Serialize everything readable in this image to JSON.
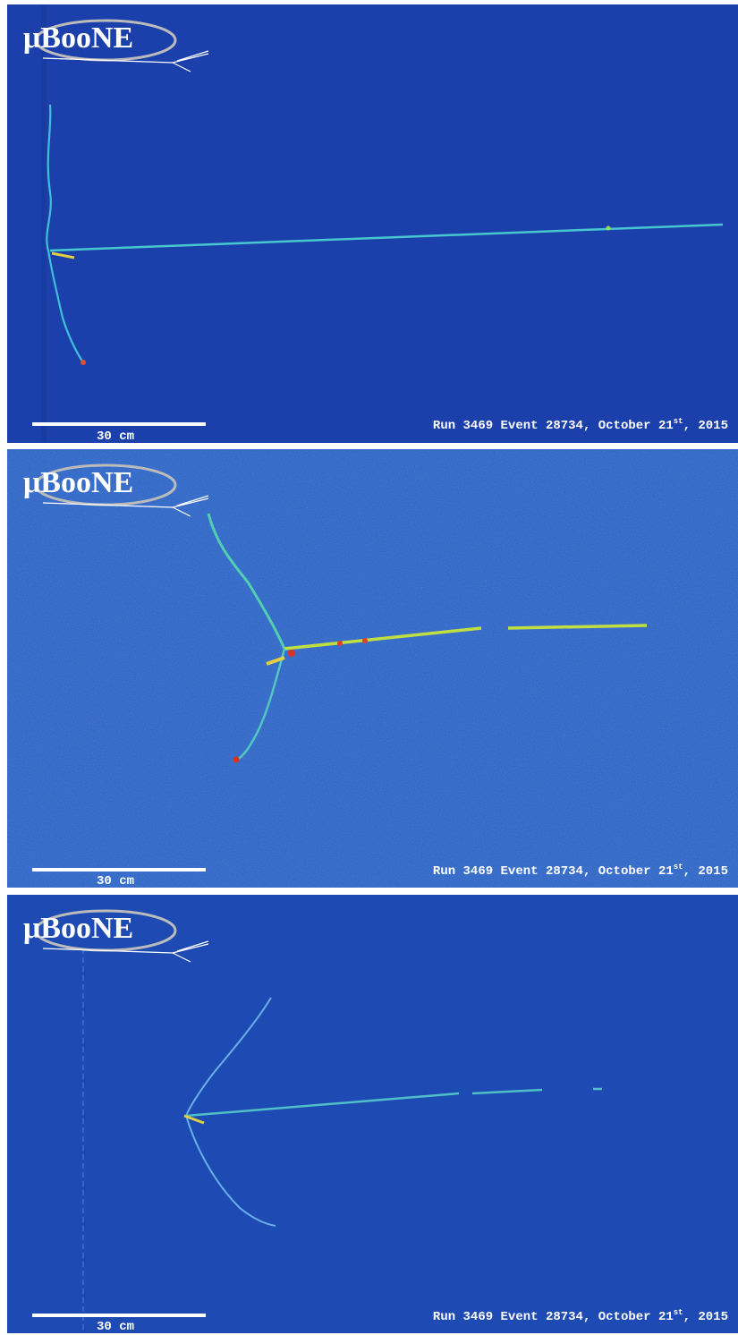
{
  "panels": [
    {
      "logo": "μBooNE",
      "scale_label": "30 cm",
      "caption": {
        "before": "Run 3469 Event 28734, October 21",
        "superscript": "st",
        "after": ", 2015"
      }
    },
    {
      "logo": "μBooNE",
      "scale_label": "30 cm",
      "caption": {
        "before": "Run 3469 Event 28734, October 21",
        "superscript": "st",
        "after": ", 2015"
      }
    },
    {
      "logo": "μBooNE",
      "scale_label": "30 cm",
      "caption": {
        "before": "Run 3469 Event 28734, October 21",
        "superscript": "st",
        "after": ", 2015"
      }
    }
  ]
}
